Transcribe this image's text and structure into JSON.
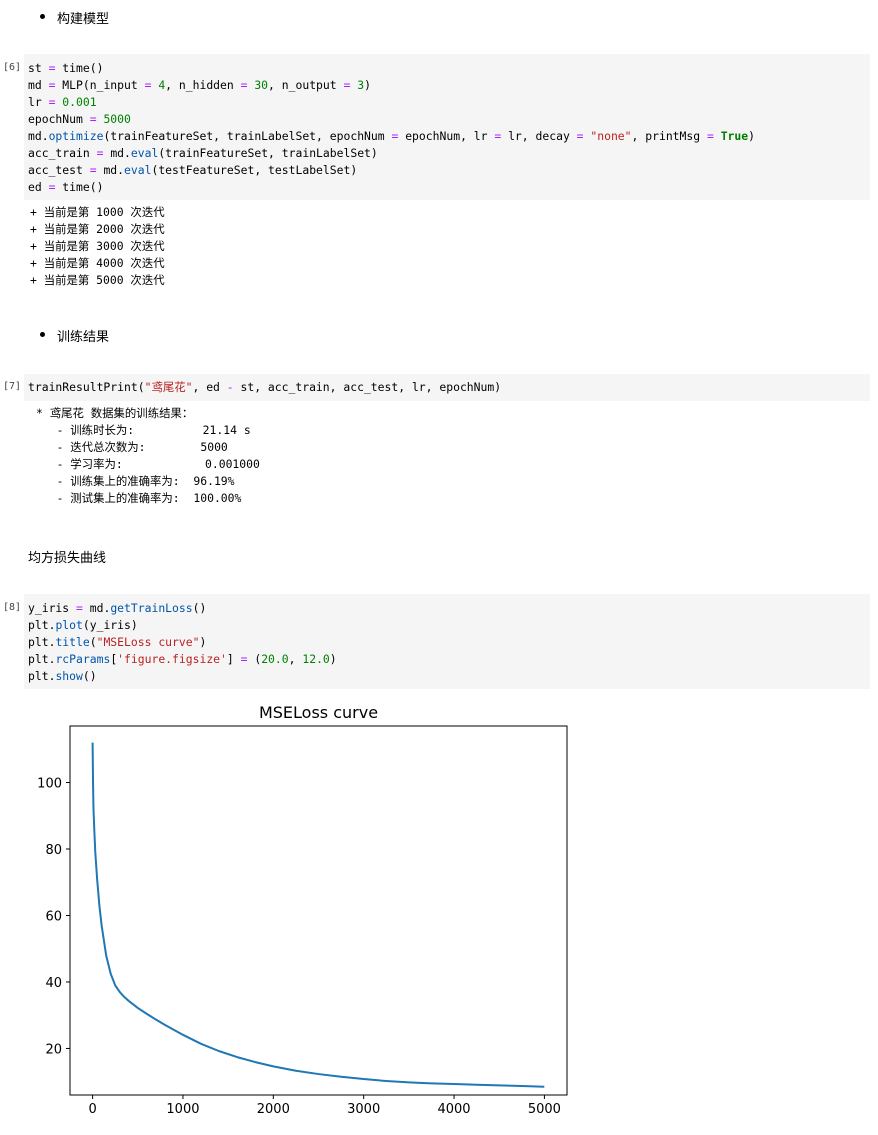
{
  "sections": {
    "build_model": "构建模型",
    "train_result": "训练结果",
    "loss_curve": "均方损失曲线"
  },
  "cells": [
    {
      "prompt": "[6]",
      "code": [
        [
          [
            "st",
            "t"
          ],
          [
            " = ",
            "o"
          ],
          [
            "time",
            "t"
          ],
          [
            "()",
            "t"
          ]
        ],
        [
          [
            "md",
            "t"
          ],
          [
            " = ",
            "o"
          ],
          [
            "MLP(n_input ",
            "t"
          ],
          [
            "=",
            "o"
          ],
          [
            " ",
            "t"
          ],
          [
            "4",
            "n"
          ],
          [
            ", n_hidden ",
            "t"
          ],
          [
            "=",
            "o"
          ],
          [
            " ",
            "t"
          ],
          [
            "30",
            "n"
          ],
          [
            ", n_output ",
            "t"
          ],
          [
            "=",
            "o"
          ],
          [
            " ",
            "t"
          ],
          [
            "3",
            "n"
          ],
          [
            ")",
            "t"
          ]
        ],
        [
          [
            "lr",
            "t"
          ],
          [
            " = ",
            "o"
          ],
          [
            "0.001",
            "n"
          ]
        ],
        [
          [
            "epochNum",
            "t"
          ],
          [
            " = ",
            "o"
          ],
          [
            "5000",
            "n"
          ]
        ],
        [
          [
            "md.",
            "t"
          ],
          [
            "optimize",
            "f"
          ],
          [
            "(trainFeatureSet, trainLabelSet, epochNum ",
            "t"
          ],
          [
            "=",
            "o"
          ],
          [
            " epochNum, lr ",
            "t"
          ],
          [
            "=",
            "o"
          ],
          [
            " lr, decay ",
            "t"
          ],
          [
            "=",
            "o"
          ],
          [
            " ",
            "t"
          ],
          [
            "\"none\"",
            "s"
          ],
          [
            ", printMsg ",
            "t"
          ],
          [
            "=",
            "o"
          ],
          [
            " ",
            "t"
          ],
          [
            "True",
            "k"
          ],
          [
            ")",
            "t"
          ]
        ],
        [
          [
            "acc_train",
            "t"
          ],
          [
            " = ",
            "o"
          ],
          [
            "md.",
            "t"
          ],
          [
            "eval",
            "f"
          ],
          [
            "(trainFeatureSet, trainLabelSet)",
            "t"
          ]
        ],
        [
          [
            "acc_test",
            "t"
          ],
          [
            " = ",
            "o"
          ],
          [
            "md.",
            "t"
          ],
          [
            "eval",
            "f"
          ],
          [
            "(testFeatureSet, testLabelSet)",
            "t"
          ]
        ],
        [
          [
            "ed",
            "t"
          ],
          [
            " = ",
            "o"
          ],
          [
            "time",
            "t"
          ],
          [
            "()",
            "t"
          ]
        ]
      ],
      "output": [
        "+ 当前是第 1000 次迭代",
        "+ 当前是第 2000 次迭代",
        "+ 当前是第 3000 次迭代",
        "+ 当前是第 4000 次迭代",
        "+ 当前是第 5000 次迭代"
      ]
    },
    {
      "prompt": "[7]",
      "code": [
        [
          [
            "trainResultPrint(",
            "t"
          ],
          [
            "\"鸢尾花\"",
            "s"
          ],
          [
            ", ed ",
            "t"
          ],
          [
            "-",
            "o"
          ],
          [
            " st, acc_train, acc_test, lr, epochNum)",
            "t"
          ]
        ]
      ],
      "output": [
        "* 鸢尾花 数据集的训练结果：",
        "   - 训练时长为:          21.14 s",
        "   - 迭代总次数为:        5000",
        "   - 学习率为:            0.001000",
        "   - 训练集上的准确率为:  96.19%",
        "   - 测试集上的准确率为:  100.00%"
      ]
    },
    {
      "prompt": "[8]",
      "code": [
        [
          [
            "y_iris",
            "t"
          ],
          [
            " = ",
            "o"
          ],
          [
            "md.",
            "t"
          ],
          [
            "getTrainLoss",
            "f"
          ],
          [
            "()",
            "t"
          ]
        ],
        [
          [
            "plt.",
            "t"
          ],
          [
            "plot",
            "f"
          ],
          [
            "(y_iris)",
            "t"
          ]
        ],
        [
          [
            "plt.",
            "t"
          ],
          [
            "title",
            "f"
          ],
          [
            "(",
            "t"
          ],
          [
            "\"MSELoss curve\"",
            "s"
          ],
          [
            ")",
            "t"
          ]
        ],
        [
          [
            "plt.",
            "t"
          ],
          [
            "rcParams",
            "f"
          ],
          [
            "[",
            "t"
          ],
          [
            "'figure.figsize'",
            "s"
          ],
          [
            "] ",
            "t"
          ],
          [
            "=",
            "o"
          ],
          [
            " (",
            "t"
          ],
          [
            "20.0",
            "n"
          ],
          [
            ", ",
            "t"
          ],
          [
            "12.0",
            "n"
          ],
          [
            ")",
            "t"
          ]
        ],
        [
          [
            "plt.",
            "t"
          ],
          [
            "show",
            "f"
          ],
          [
            "()",
            "t"
          ]
        ]
      ]
    }
  ],
  "chart_data": {
    "type": "line",
    "title": "MSELoss curve",
    "xlabel": "",
    "ylabel": "",
    "xlim": [
      -250,
      5250
    ],
    "ylim": [
      6,
      117
    ],
    "xticks": [
      0,
      1000,
      2000,
      3000,
      4000,
      5000
    ],
    "yticks": [
      20,
      40,
      60,
      80,
      100
    ],
    "color": "#1f77b4",
    "x": [
      0,
      5,
      10,
      20,
      30,
      50,
      75,
      100,
      150,
      200,
      250,
      300,
      350,
      400,
      500,
      600,
      700,
      800,
      1000,
      1200,
      1400,
      1600,
      1800,
      2000,
      2250,
      2500,
      2750,
      3000,
      3250,
      3500,
      3750,
      4000,
      4250,
      4500,
      4750,
      4999
    ],
    "y": [
      112,
      100,
      92,
      85,
      79,
      71,
      63,
      57,
      48,
      42.5,
      39,
      37,
      35.5,
      34.3,
      32.2,
      30.4,
      28.7,
      27.1,
      24.1,
      21.4,
      19.2,
      17.4,
      15.9,
      14.6,
      13.3,
      12.3,
      11.5,
      10.8,
      10.2,
      9.8,
      9.5,
      9.3,
      9.1,
      8.9,
      8.7,
      8.5
    ]
  }
}
